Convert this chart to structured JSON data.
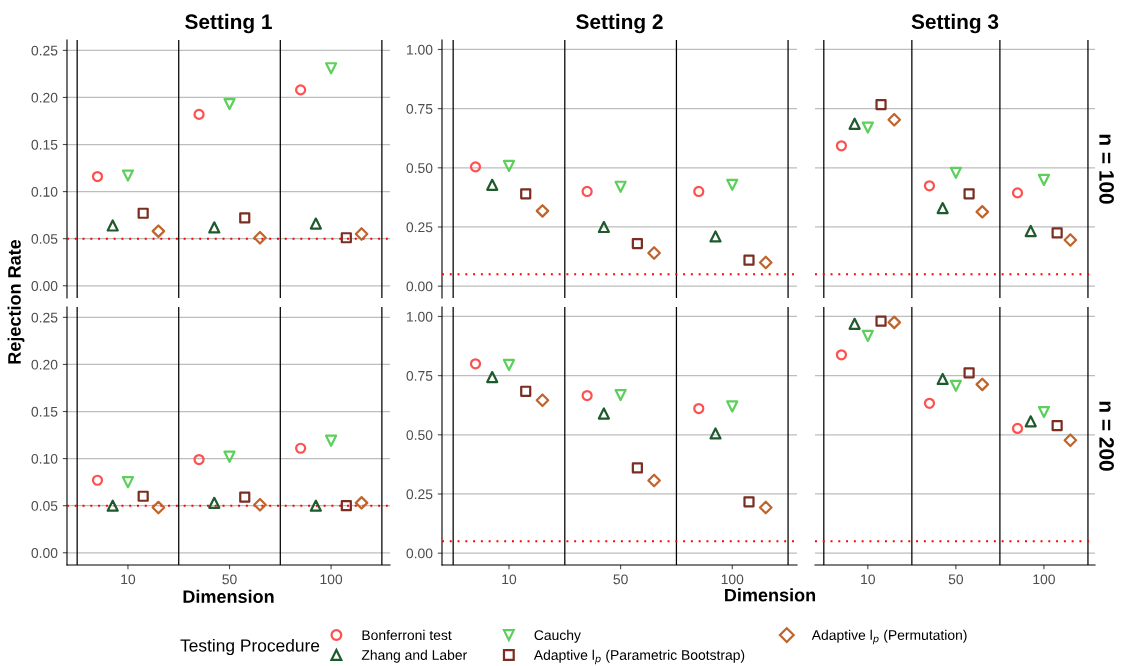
{
  "chart_data": [
    {
      "type": "scatter",
      "title": "Setting 1",
      "ylabel": "Rejection Rate",
      "categories": [
        "10",
        "50",
        "100"
      ],
      "tick_labels": "y",
      "ylim": [
        -0.013,
        0.261
      ],
      "yticks": [
        {
          "value": 0,
          "label": "0.00"
        },
        {
          "value": 0.05,
          "label": "0.05"
        },
        {
          "value": 0.1,
          "label": "0.10"
        },
        {
          "value": 0.15,
          "label": "0.15"
        },
        {
          "value": 0.2,
          "label": "0.20"
        },
        {
          "value": 0.25,
          "label": "0.25"
        }
      ],
      "grid": "y",
      "ref_lines": [
        {
          "axis": "y",
          "value": 0.05,
          "color": "#ff0000",
          "line_style": "dotted"
        }
      ],
      "legend": "bottom",
      "legend_title": "Testing Procedure",
      "series": [
        {
          "name": "Bonferroni test",
          "color": "#ff5050",
          "marker": "circle",
          "values": [
            0.116,
            0.182,
            0.208
          ]
        },
        {
          "name": "Zhang and Laber",
          "color": "#1d5a2c",
          "marker": "triangle",
          "values": [
            0.064,
            0.062,
            0.066
          ]
        },
        {
          "name": "Cauchy",
          "color": "#5ccf5c",
          "marker": "triangle_down",
          "values": [
            0.117,
            0.193,
            0.231
          ]
        },
        {
          "name": "Adaptive l$_{p}$ (Parametric Bootstrap)",
          "color": "#7a2e22",
          "marker": "square",
          "values": [
            0.077,
            0.072,
            0.051
          ]
        },
        {
          "name": "Adaptive l$_{p}$ (Permutation)",
          "color": "#c0642c",
          "marker": "diamond",
          "values": [
            0.058,
            0.051,
            0.055
          ]
        }
      ]
    },
    {
      "type": "scatter",
      "title": "Setting 2",
      "categories": [
        "10",
        "50",
        "100"
      ],
      "tick_labels": "y",
      "ylim": [
        -0.05,
        1.04
      ],
      "yticks": [
        {
          "value": 0,
          "label": "0.00"
        },
        {
          "value": 0.25,
          "label": "0.25"
        },
        {
          "value": 0.5,
          "label": "0.50"
        },
        {
          "value": 0.75,
          "label": "0.75"
        },
        {
          "value": 1,
          "label": "1.00"
        }
      ],
      "grid": "y",
      "ref_lines": [
        {
          "axis": "y",
          "value": 0.05,
          "color": "#ff0000",
          "line_style": "dotted"
        }
      ],
      "series": [
        {
          "color": "#ff5050",
          "marker": "circle",
          "values": [
            0.504,
            0.4,
            0.4
          ]
        },
        {
          "color": "#1d5a2c",
          "marker": "triangle",
          "values": [
            0.428,
            0.25,
            0.21
          ]
        },
        {
          "color": "#5ccf5c",
          "marker": "triangle_down",
          "values": [
            0.508,
            0.42,
            0.428
          ]
        },
        {
          "color": "#7a2e22",
          "marker": "square",
          "values": [
            0.39,
            0.18,
            0.11
          ]
        },
        {
          "color": "#c0642c",
          "marker": "diamond",
          "values": [
            0.318,
            0.14,
            0.1
          ]
        }
      ]
    },
    {
      "type": "scatter",
      "title": "Setting 3",
      "annotations": [
        "n = 100"
      ],
      "categories": [
        "10",
        "50",
        "100"
      ],
      "tick_labels": false,
      "ylim": [
        -0.05,
        1.04
      ],
      "yticks": [
        {
          "value": 0,
          "label": null
        },
        {
          "value": 0.25,
          "label": null
        },
        {
          "value": 0.5,
          "label": null
        },
        {
          "value": 0.75,
          "label": null
        },
        {
          "value": 1,
          "label": null
        }
      ],
      "grid": "y",
      "ref_lines": [
        {
          "axis": "y",
          "value": 0.05,
          "color": "#ff0000",
          "line_style": "dotted"
        }
      ],
      "series": [
        {
          "color": "#ff5050",
          "marker": "circle",
          "values": [
            0.593,
            0.424,
            0.394
          ]
        },
        {
          "color": "#1d5a2c",
          "marker": "triangle",
          "values": [
            0.686,
            0.33,
            0.233
          ]
        },
        {
          "color": "#5ccf5c",
          "marker": "triangle_down",
          "values": [
            0.67,
            0.479,
            0.449
          ]
        },
        {
          "color": "#7a2e22",
          "marker": "square",
          "values": [
            0.767,
            0.39,
            0.225
          ]
        },
        {
          "color": "#c0642c",
          "marker": "diamond",
          "values": [
            0.703,
            0.314,
            0.195
          ]
        }
      ]
    },
    {
      "type": "scatter",
      "xlabel": "Dimension",
      "categories": [
        "10",
        "50",
        "100"
      ],
      "ylim": [
        -0.013,
        0.261
      ],
      "yticks": [
        {
          "value": 0,
          "label": "0.00"
        },
        {
          "value": 0.05,
          "label": "0.05"
        },
        {
          "value": 0.1,
          "label": "0.10"
        },
        {
          "value": 0.15,
          "label": "0.15"
        },
        {
          "value": 0.2,
          "label": "0.20"
        },
        {
          "value": 0.25,
          "label": "0.25"
        }
      ],
      "grid": "y",
      "ref_lines": [
        {
          "axis": "y",
          "value": 0.05,
          "color": "#ff0000",
          "line_style": "dotted"
        }
      ],
      "series": [
        {
          "color": "#ff5050",
          "marker": "circle",
          "values": [
            0.077,
            0.099,
            0.111
          ]
        },
        {
          "color": "#1d5a2c",
          "marker": "triangle",
          "values": [
            0.05,
            0.053,
            0.05
          ]
        },
        {
          "color": "#5ccf5c",
          "marker": "triangle_down",
          "values": [
            0.075,
            0.102,
            0.119
          ]
        },
        {
          "color": "#7a2e22",
          "marker": "square",
          "values": [
            0.06,
            0.059,
            0.05
          ]
        },
        {
          "color": "#c0642c",
          "marker": "diamond",
          "values": [
            0.048,
            0.051,
            0.053
          ]
        }
      ]
    },
    {
      "type": "scatter",
      "xlabel": "Dimension",
      "categories": [
        "10",
        "50",
        "100"
      ],
      "ylim": [
        -0.05,
        1.04
      ],
      "yticks": [
        {
          "value": 0,
          "label": "0.00"
        },
        {
          "value": 0.25,
          "label": "0.25"
        },
        {
          "value": 0.5,
          "label": "0.50"
        },
        {
          "value": 0.75,
          "label": "0.75"
        },
        {
          "value": 1,
          "label": "1.00"
        }
      ],
      "grid": "y",
      "ref_lines": [
        {
          "axis": "y",
          "value": 0.05,
          "color": "#ff0000",
          "line_style": "dotted"
        }
      ],
      "series": [
        {
          "color": "#ff5050",
          "marker": "circle",
          "values": [
            0.8,
            0.666,
            0.611
          ]
        },
        {
          "color": "#1d5a2c",
          "marker": "triangle",
          "values": [
            0.744,
            0.59,
            0.506
          ]
        },
        {
          "color": "#5ccf5c",
          "marker": "triangle_down",
          "values": [
            0.795,
            0.668,
            0.62
          ]
        },
        {
          "color": "#7a2e22",
          "marker": "square",
          "values": [
            0.684,
            0.36,
            0.217
          ]
        },
        {
          "color": "#c0642c",
          "marker": "diamond",
          "values": [
            0.646,
            0.307,
            0.193
          ]
        }
      ]
    },
    {
      "type": "scatter",
      "annotations": [
        "n = 200"
      ],
      "categories": [
        "10",
        "50",
        "100"
      ],
      "tick_labels": "x",
      "ylim": [
        -0.05,
        1.04
      ],
      "yticks": [
        {
          "value": 0,
          "label": null
        },
        {
          "value": 0.25,
          "label": null
        },
        {
          "value": 0.5,
          "label": null
        },
        {
          "value": 0.75,
          "label": null
        },
        {
          "value": 1,
          "label": null
        }
      ],
      "grid": "y",
      "ref_lines": [
        {
          "axis": "y",
          "value": 0.05,
          "color": "#ff0000",
          "line_style": "dotted"
        }
      ],
      "series": [
        {
          "color": "#ff5050",
          "marker": "circle",
          "values": [
            0.838,
            0.633,
            0.527
          ]
        },
        {
          "color": "#1d5a2c",
          "marker": "triangle",
          "values": [
            0.969,
            0.736,
            0.557
          ]
        },
        {
          "color": "#5ccf5c",
          "marker": "triangle_down",
          "values": [
            0.918,
            0.707,
            0.596
          ]
        },
        {
          "color": "#7a2e22",
          "marker": "square",
          "values": [
            0.98,
            0.762,
            0.539
          ]
        },
        {
          "color": "#c0642c",
          "marker": "diamond",
          "values": [
            0.975,
            0.713,
            0.477
          ]
        }
      ]
    }
  ]
}
